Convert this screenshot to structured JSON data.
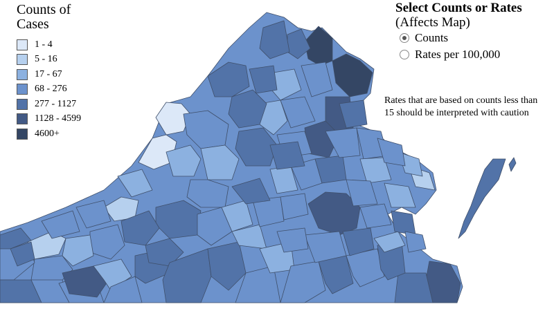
{
  "legend": {
    "title": "Counts of Cases",
    "items": [
      {
        "label": "1 - 4",
        "color": "#dce8f8"
      },
      {
        "label": "5 - 16",
        "color": "#b6d0ee"
      },
      {
        "label": "17 - 67",
        "color": "#8cb1e0"
      },
      {
        "label": "68 - 276",
        "color": "#6c92cc"
      },
      {
        "label": "277 - 1127",
        "color": "#5273a8"
      },
      {
        "label": "1128 - 4599",
        "color": "#435a85"
      },
      {
        "label": "4600+",
        "color": "#344664"
      }
    ]
  },
  "controls": {
    "title": "Select Counts or Rates",
    "subtitle": "(Affects Map)",
    "options": [
      {
        "label": "Counts",
        "selected": true
      },
      {
        "label": "Rates per 100,000",
        "selected": false
      }
    ]
  },
  "note": "Rates that are based on counts less than 15 should be interpreted with caution"
}
